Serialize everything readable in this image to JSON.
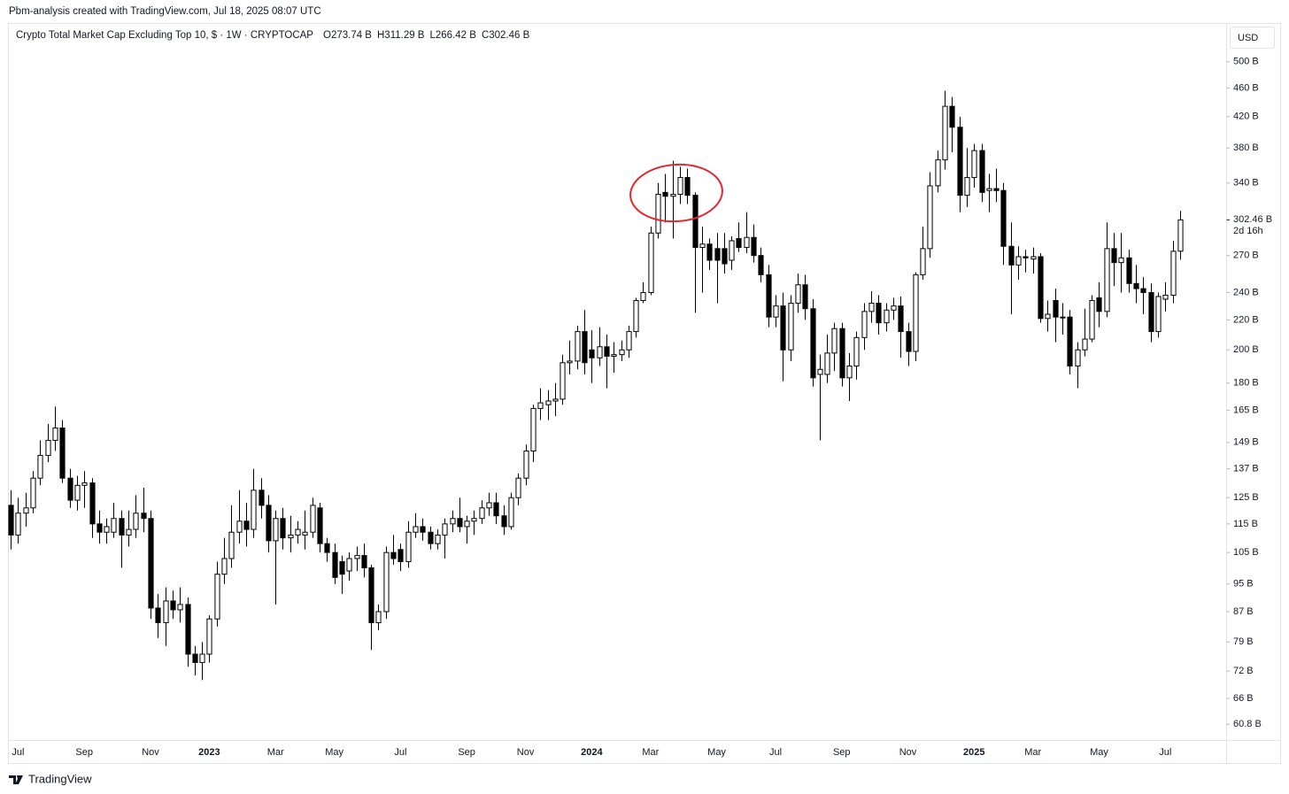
{
  "credit": "Pbm-analysis created with TradingView.com, Jul 18, 2025 08:07 UTC",
  "brand": "TradingView",
  "chart_data": {
    "type": "candlestick",
    "title": "Crypto Total Market Cap Excluding Top 10, $ · 1W · CRYPTOCAP",
    "ohlc_header": [
      {
        "key": "O",
        "label": "273.74 B"
      },
      {
        "key": "H",
        "label": "311.29 B"
      },
      {
        "key": "L",
        "label": "266.42 B"
      },
      {
        "key": "C",
        "label": "302.46 B"
      }
    ],
    "currency": "USD",
    "log_scale": true,
    "up_color": "#ffffff",
    "down_color": "#000000",
    "wick_color": "#000000",
    "annotation_color": "#e0282e",
    "last_price": {
      "value": 302.46,
      "label": "302.46 B",
      "countdown": "2d 16h"
    },
    "ylim": [
      58,
      564
    ],
    "yticks": [
      {
        "value": 500,
        "label": "500 B"
      },
      {
        "value": 460,
        "label": "460 B"
      },
      {
        "value": 420,
        "label": "420 B"
      },
      {
        "value": 380,
        "label": "380 B"
      },
      {
        "value": 340,
        "label": "340 B"
      },
      {
        "value": 270,
        "label": "270 B"
      },
      {
        "value": 240,
        "label": "240 B"
      },
      {
        "value": 220,
        "label": "220 B"
      },
      {
        "value": 200,
        "label": "200 B"
      },
      {
        "value": 180,
        "label": "180 B"
      },
      {
        "value": 165,
        "label": "165 B"
      },
      {
        "value": 149,
        "label": "149 B"
      },
      {
        "value": 137,
        "label": "137 B"
      },
      {
        "value": 125,
        "label": "125 B"
      },
      {
        "value": 115,
        "label": "115 B"
      },
      {
        "value": 105,
        "label": "105 B"
      },
      {
        "value": 95,
        "label": "95 B"
      },
      {
        "value": 87,
        "label": "87 B"
      },
      {
        "value": 79,
        "label": "79 B"
      },
      {
        "value": 72,
        "label": "72 B"
      },
      {
        "value": 66,
        "label": "66 B"
      },
      {
        "value": 60.8,
        "label": "60.8 B"
      }
    ],
    "categories": [
      null,
      "Jul",
      null,
      null,
      null,
      null,
      null,
      null,
      null,
      null,
      "Sep",
      null,
      null,
      null,
      null,
      null,
      null,
      null,
      null,
      "Nov",
      null,
      null,
      null,
      null,
      null,
      null,
      null,
      "2023",
      null,
      null,
      null,
      null,
      null,
      null,
      null,
      null,
      "Mar",
      null,
      null,
      null,
      null,
      null,
      null,
      null,
      "May",
      null,
      null,
      null,
      null,
      null,
      null,
      null,
      null,
      "Jul",
      null,
      null,
      null,
      null,
      null,
      null,
      null,
      null,
      "Sep",
      null,
      null,
      null,
      null,
      null,
      null,
      null,
      "Nov",
      null,
      null,
      null,
      null,
      null,
      null,
      null,
      null,
      "2024",
      null,
      null,
      null,
      null,
      null,
      null,
      null,
      "Mar",
      null,
      null,
      null,
      null,
      null,
      null,
      null,
      null,
      "May",
      null,
      null,
      null,
      null,
      null,
      null,
      null,
      "Jul",
      null,
      null,
      null,
      null,
      null,
      null,
      null,
      null,
      "Sep",
      null,
      null,
      null,
      null,
      null,
      null,
      null,
      null,
      "Nov",
      null,
      null,
      null,
      null,
      null,
      null,
      null,
      null,
      "2025",
      null,
      null,
      null,
      null,
      null,
      null,
      null,
      "Mar",
      null,
      null,
      null,
      null,
      null,
      null,
      null,
      null,
      "May",
      null,
      null,
      null,
      null,
      null,
      null,
      null,
      null,
      "Jul",
      null,
      null
    ],
    "open": [
      122,
      111,
      119,
      121,
      133,
      143,
      150,
      156,
      133,
      124,
      130,
      131,
      115,
      112,
      112,
      117,
      111,
      113,
      119,
      117,
      88,
      84,
      90,
      87.5,
      89,
      76,
      74,
      76,
      85,
      98,
      103,
      112,
      116,
      113,
      128,
      122,
      109,
      117,
      110,
      111,
      111,
      112,
      121,
      108,
      105,
      102,
      99,
      103,
      104,
      100,
      84,
      87,
      105,
      106,
      102,
      112,
      114,
      112,
      108,
      111,
      115,
      117,
      114,
      116,
      117,
      121,
      123,
      118,
      114,
      125,
      133,
      145,
      166,
      168,
      170,
      171,
      192,
      193,
      212,
      200,
      195,
      202,
      196,
      197,
      200,
      212,
      234,
      240,
      290,
      330,
      326,
      328,
      346,
      327,
      277,
      280,
      276,
      276,
      266,
      285,
      277,
      286,
      270,
      254,
      222,
      230,
      200,
      232,
      246,
      228,
      185,
      185,
      198,
      214,
      183,
      190,
      208,
      226,
      232,
      218,
      227,
      230,
      212,
      199,
      254,
      276,
      337,
      366,
      434,
      406,
      327,
      346,
      377,
      332,
      334,
      332,
      278,
      262,
      269,
      267,
      269,
      221,
      234,
      222,
      222,
      190,
      200,
      207,
      236,
      226,
      276,
      264,
      268,
      247,
      243,
      240,
      212,
      235,
      238,
      273.74
    ],
    "high": [
      128,
      125,
      127,
      136,
      150,
      158,
      167,
      160,
      137,
      134,
      136,
      133,
      120,
      117,
      123,
      120,
      120,
      126,
      129,
      120,
      92,
      94,
      93,
      94,
      91,
      78,
      79,
      86,
      102,
      110,
      122,
      128,
      123,
      137,
      133,
      126,
      120,
      121,
      118,
      116,
      120,
      125,
      123,
      110,
      108,
      104,
      105,
      107,
      108,
      101,
      89,
      107,
      111,
      108,
      116,
      119,
      117,
      114,
      113,
      117,
      120,
      125,
      118,
      120,
      124,
      127,
      127,
      122,
      127,
      135,
      148,
      168,
      177,
      176,
      180,
      197,
      206,
      216,
      227,
      213,
      215,
      210,
      205,
      206,
      216,
      236,
      248,
      296,
      340,
      350,
      365,
      358,
      356,
      330,
      296,
      285,
      290,
      290,
      287,
      300,
      310,
      298,
      277,
      262,
      238,
      240,
      238,
      255,
      254,
      235,
      197,
      210,
      218,
      218,
      198,
      212,
      232,
      241,
      238,
      232,
      236,
      237,
      218,
      256,
      296,
      352,
      377,
      456,
      447,
      420,
      380,
      385,
      385,
      350,
      356,
      340,
      300,
      278,
      275,
      277,
      272,
      234,
      243,
      232,
      227,
      205,
      228,
      238,
      248,
      300,
      290,
      290,
      275,
      262,
      252,
      247,
      240,
      248,
      283,
      311.29
    ],
    "low": [
      106,
      108,
      114,
      119,
      130,
      140,
      145,
      131,
      121,
      120,
      121,
      110,
      108,
      108,
      110,
      100,
      107,
      110,
      112,
      85,
      80,
      78,
      85,
      84,
      73,
      71,
      70,
      74,
      83,
      95,
      100,
      108,
      107,
      110,
      117,
      105,
      89,
      106,
      105,
      108,
      106,
      110,
      105,
      102,
      95,
      92,
      96,
      99,
      97,
      77,
      82,
      85,
      101,
      99,
      100,
      110,
      109,
      106,
      106,
      103,
      112,
      112,
      108,
      111,
      115,
      118,
      115,
      111,
      113,
      122,
      130,
      140,
      160,
      160,
      162,
      168,
      185,
      188,
      185,
      180,
      190,
      177,
      186,
      193,
      195,
      208,
      232,
      238,
      285,
      300,
      285,
      318,
      318,
      225,
      240,
      258,
      232,
      255,
      258,
      273,
      272,
      264,
      248,
      215,
      215,
      181,
      193,
      225,
      220,
      178,
      150,
      180,
      187,
      178,
      170,
      182,
      200,
      218,
      210,
      212,
      220,
      195,
      190,
      193,
      250,
      268,
      330,
      355,
      375,
      310,
      315,
      335,
      320,
      310,
      320,
      262,
      224,
      250,
      256,
      255,
      218,
      212,
      205,
      210,
      185,
      177,
      196,
      205,
      215,
      222,
      245,
      240,
      240,
      232,
      224,
      205,
      208,
      226,
      232,
      266.42
    ],
    "close": [
      111,
      119,
      121,
      133,
      143,
      150,
      156,
      133,
      124,
      130,
      131,
      115,
      112,
      114,
      117,
      111,
      113,
      119,
      117,
      88,
      84,
      90,
      87.5,
      89,
      76,
      74,
      76,
      85,
      98,
      103,
      112,
      116,
      113,
      128,
      122,
      109,
      117,
      110,
      111,
      113,
      112,
      122,
      108,
      105,
      97,
      98,
      103,
      104,
      100,
      84,
      87,
      105,
      103,
      102,
      112,
      114,
      112,
      108,
      111,
      115,
      117,
      114,
      116,
      117,
      121,
      123,
      118,
      114,
      125,
      133,
      145,
      166,
      169,
      170,
      171,
      192,
      193,
      212,
      192,
      195,
      202,
      196,
      197,
      200,
      212,
      234,
      240,
      290,
      328,
      326,
      328,
      346,
      327,
      277,
      280,
      266,
      266,
      263,
      283,
      277,
      286,
      270,
      254,
      222,
      230,
      200,
      232,
      246,
      228,
      183,
      188,
      198,
      214,
      183,
      190,
      208,
      226,
      232,
      218,
      227,
      230,
      212,
      199,
      254,
      276,
      337,
      366,
      434,
      406,
      327,
      346,
      377,
      330,
      334,
      332,
      278,
      262,
      269,
      268,
      269,
      221,
      224,
      222,
      222,
      190,
      200,
      207,
      234,
      226,
      276,
      264,
      268,
      247,
      243,
      240,
      212,
      237,
      238,
      273.7,
      302.46
    ]
  }
}
